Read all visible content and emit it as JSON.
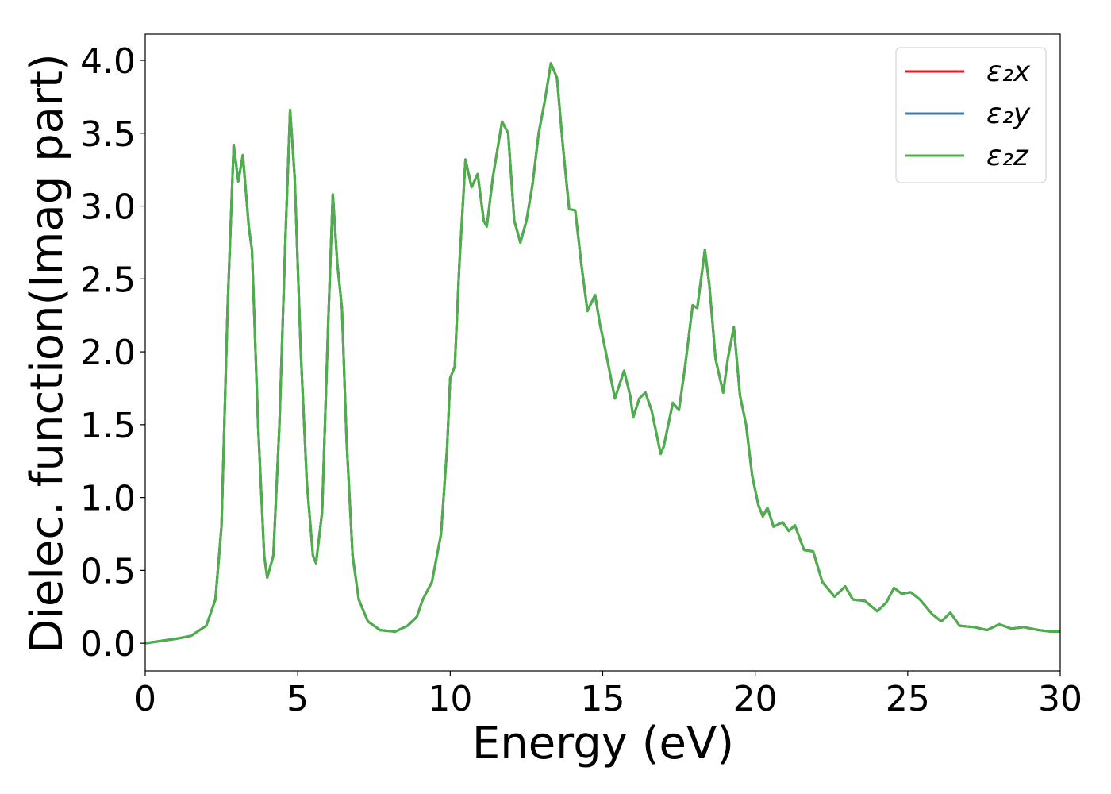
{
  "chart_data": {
    "type": "line",
    "xlabel": "Energy (eV)",
    "ylabel": "Dielec. function(Imag part)",
    "x": [
      0,
      1.0,
      1.5,
      2.0,
      2.3,
      2.5,
      2.7,
      2.9,
      3.05,
      3.2,
      3.4,
      3.5,
      3.7,
      3.9,
      4.0,
      4.2,
      4.4,
      4.6,
      4.75,
      4.9,
      5.1,
      5.3,
      5.5,
      5.6,
      5.8,
      6.0,
      6.15,
      6.3,
      6.45,
      6.6,
      6.8,
      7.0,
      7.3,
      7.7,
      8.2,
      8.6,
      8.9,
      9.1,
      9.4,
      9.7,
      9.9,
      10.0,
      10.15,
      10.3,
      10.5,
      10.7,
      10.9,
      11.1,
      11.2,
      11.4,
      11.7,
      11.9,
      12.1,
      12.3,
      12.5,
      12.7,
      12.9,
      13.1,
      13.3,
      13.5,
      13.7,
      13.9,
      14.1,
      14.3,
      14.5,
      14.75,
      14.9,
      15.1,
      15.4,
      15.7,
      15.9,
      16.0,
      16.2,
      16.4,
      16.6,
      16.9,
      17.0,
      17.3,
      17.5,
      17.7,
      17.95,
      18.1,
      18.35,
      18.5,
      18.7,
      18.95,
      19.1,
      19.3,
      19.5,
      19.7,
      19.9,
      20.1,
      20.25,
      20.4,
      20.6,
      20.9,
      21.1,
      21.3,
      21.6,
      21.9,
      22.2,
      22.6,
      22.95,
      23.2,
      23.6,
      24.0,
      24.3,
      24.55,
      24.8,
      25.1,
      25.4,
      25.8,
      26.1,
      26.4,
      26.7,
      27.2,
      27.6,
      28.0,
      28.4,
      28.8,
      29.3,
      29.7,
      30.0
    ],
    "series": [
      {
        "name": "ε₂x",
        "color": "#e41a1c",
        "values": [
          0.0,
          0.03,
          0.05,
          0.12,
          0.3,
          0.8,
          2.3,
          3.42,
          3.17,
          3.35,
          2.85,
          2.7,
          1.5,
          0.6,
          0.45,
          0.6,
          1.5,
          2.8,
          3.66,
          3.2,
          2.0,
          1.1,
          0.6,
          0.55,
          0.9,
          2.2,
          3.08,
          2.6,
          2.3,
          1.4,
          0.6,
          0.3,
          0.15,
          0.09,
          0.08,
          0.12,
          0.18,
          0.3,
          0.42,
          0.75,
          1.35,
          1.82,
          1.9,
          2.6,
          3.32,
          3.13,
          3.22,
          2.9,
          2.86,
          3.2,
          3.58,
          3.5,
          2.9,
          2.75,
          2.9,
          3.15,
          3.5,
          3.72,
          3.98,
          3.88,
          3.4,
          2.98,
          2.97,
          2.6,
          2.28,
          2.39,
          2.2,
          2.0,
          1.68,
          1.87,
          1.7,
          1.55,
          1.68,
          1.72,
          1.6,
          1.3,
          1.35,
          1.65,
          1.6,
          1.9,
          2.32,
          2.3,
          2.7,
          2.45,
          1.95,
          1.72,
          1.95,
          2.17,
          1.7,
          1.5,
          1.15,
          0.95,
          0.87,
          0.93,
          0.8,
          0.83,
          0.77,
          0.81,
          0.64,
          0.63,
          0.42,
          0.32,
          0.39,
          0.3,
          0.29,
          0.22,
          0.28,
          0.38,
          0.34,
          0.35,
          0.3,
          0.2,
          0.15,
          0.21,
          0.12,
          0.11,
          0.09,
          0.13,
          0.1,
          0.11,
          0.09,
          0.08,
          0.08
        ]
      },
      {
        "name": "ε₂y",
        "color": "#377eb8",
        "values": [
          0.0,
          0.03,
          0.05,
          0.12,
          0.3,
          0.8,
          2.3,
          3.42,
          3.17,
          3.35,
          2.85,
          2.7,
          1.5,
          0.6,
          0.45,
          0.6,
          1.5,
          2.8,
          3.66,
          3.2,
          2.0,
          1.1,
          0.6,
          0.55,
          0.9,
          2.2,
          3.08,
          2.6,
          2.3,
          1.4,
          0.6,
          0.3,
          0.15,
          0.09,
          0.08,
          0.12,
          0.18,
          0.3,
          0.42,
          0.75,
          1.35,
          1.82,
          1.9,
          2.6,
          3.32,
          3.13,
          3.22,
          2.9,
          2.86,
          3.2,
          3.58,
          3.5,
          2.9,
          2.75,
          2.9,
          3.15,
          3.5,
          3.72,
          3.98,
          3.88,
          3.4,
          2.98,
          2.97,
          2.6,
          2.28,
          2.39,
          2.2,
          2.0,
          1.68,
          1.87,
          1.7,
          1.55,
          1.68,
          1.72,
          1.6,
          1.3,
          1.35,
          1.65,
          1.6,
          1.9,
          2.32,
          2.3,
          2.7,
          2.45,
          1.95,
          1.72,
          1.95,
          2.17,
          1.7,
          1.5,
          1.15,
          0.95,
          0.87,
          0.93,
          0.8,
          0.83,
          0.77,
          0.81,
          0.64,
          0.63,
          0.42,
          0.32,
          0.39,
          0.3,
          0.29,
          0.22,
          0.28,
          0.38,
          0.34,
          0.35,
          0.3,
          0.2,
          0.15,
          0.21,
          0.12,
          0.11,
          0.09,
          0.13,
          0.1,
          0.11,
          0.09,
          0.08,
          0.08
        ]
      },
      {
        "name": "ε₂z",
        "color": "#4daf4a",
        "values": [
          0.0,
          0.03,
          0.05,
          0.12,
          0.3,
          0.8,
          2.3,
          3.42,
          3.17,
          3.35,
          2.85,
          2.7,
          1.5,
          0.6,
          0.45,
          0.6,
          1.5,
          2.8,
          3.66,
          3.2,
          2.0,
          1.1,
          0.6,
          0.55,
          0.9,
          2.2,
          3.08,
          2.6,
          2.3,
          1.4,
          0.6,
          0.3,
          0.15,
          0.09,
          0.08,
          0.12,
          0.18,
          0.3,
          0.42,
          0.75,
          1.35,
          1.82,
          1.9,
          2.6,
          3.32,
          3.13,
          3.22,
          2.9,
          2.86,
          3.2,
          3.58,
          3.5,
          2.9,
          2.75,
          2.9,
          3.15,
          3.5,
          3.72,
          3.98,
          3.88,
          3.4,
          2.98,
          2.97,
          2.6,
          2.28,
          2.39,
          2.2,
          2.0,
          1.68,
          1.87,
          1.7,
          1.55,
          1.68,
          1.72,
          1.6,
          1.3,
          1.35,
          1.65,
          1.6,
          1.9,
          2.32,
          2.3,
          2.7,
          2.45,
          1.95,
          1.72,
          1.95,
          2.17,
          1.7,
          1.5,
          1.15,
          0.95,
          0.87,
          0.93,
          0.8,
          0.83,
          0.77,
          0.81,
          0.64,
          0.63,
          0.42,
          0.32,
          0.39,
          0.3,
          0.29,
          0.22,
          0.28,
          0.38,
          0.34,
          0.35,
          0.3,
          0.2,
          0.15,
          0.21,
          0.12,
          0.11,
          0.09,
          0.13,
          0.1,
          0.11,
          0.09,
          0.08,
          0.08
        ]
      }
    ],
    "xlim": [
      0,
      30
    ],
    "xticks": [
      0,
      5,
      10,
      15,
      20,
      25,
      30
    ],
    "ylim": [
      -0.19,
      4.18
    ],
    "yticks": [
      {
        "value": 0,
        "label": "0.0"
      },
      0.5,
      {
        "value": 1,
        "label": "1.0"
      },
      1.5,
      {
        "value": 2,
        "label": "2.0"
      },
      2.5,
      {
        "value": 3,
        "label": "3.0"
      },
      3.5,
      {
        "value": 4,
        "label": "4.0"
      }
    ],
    "legend": "upper right",
    "grid": false
  }
}
